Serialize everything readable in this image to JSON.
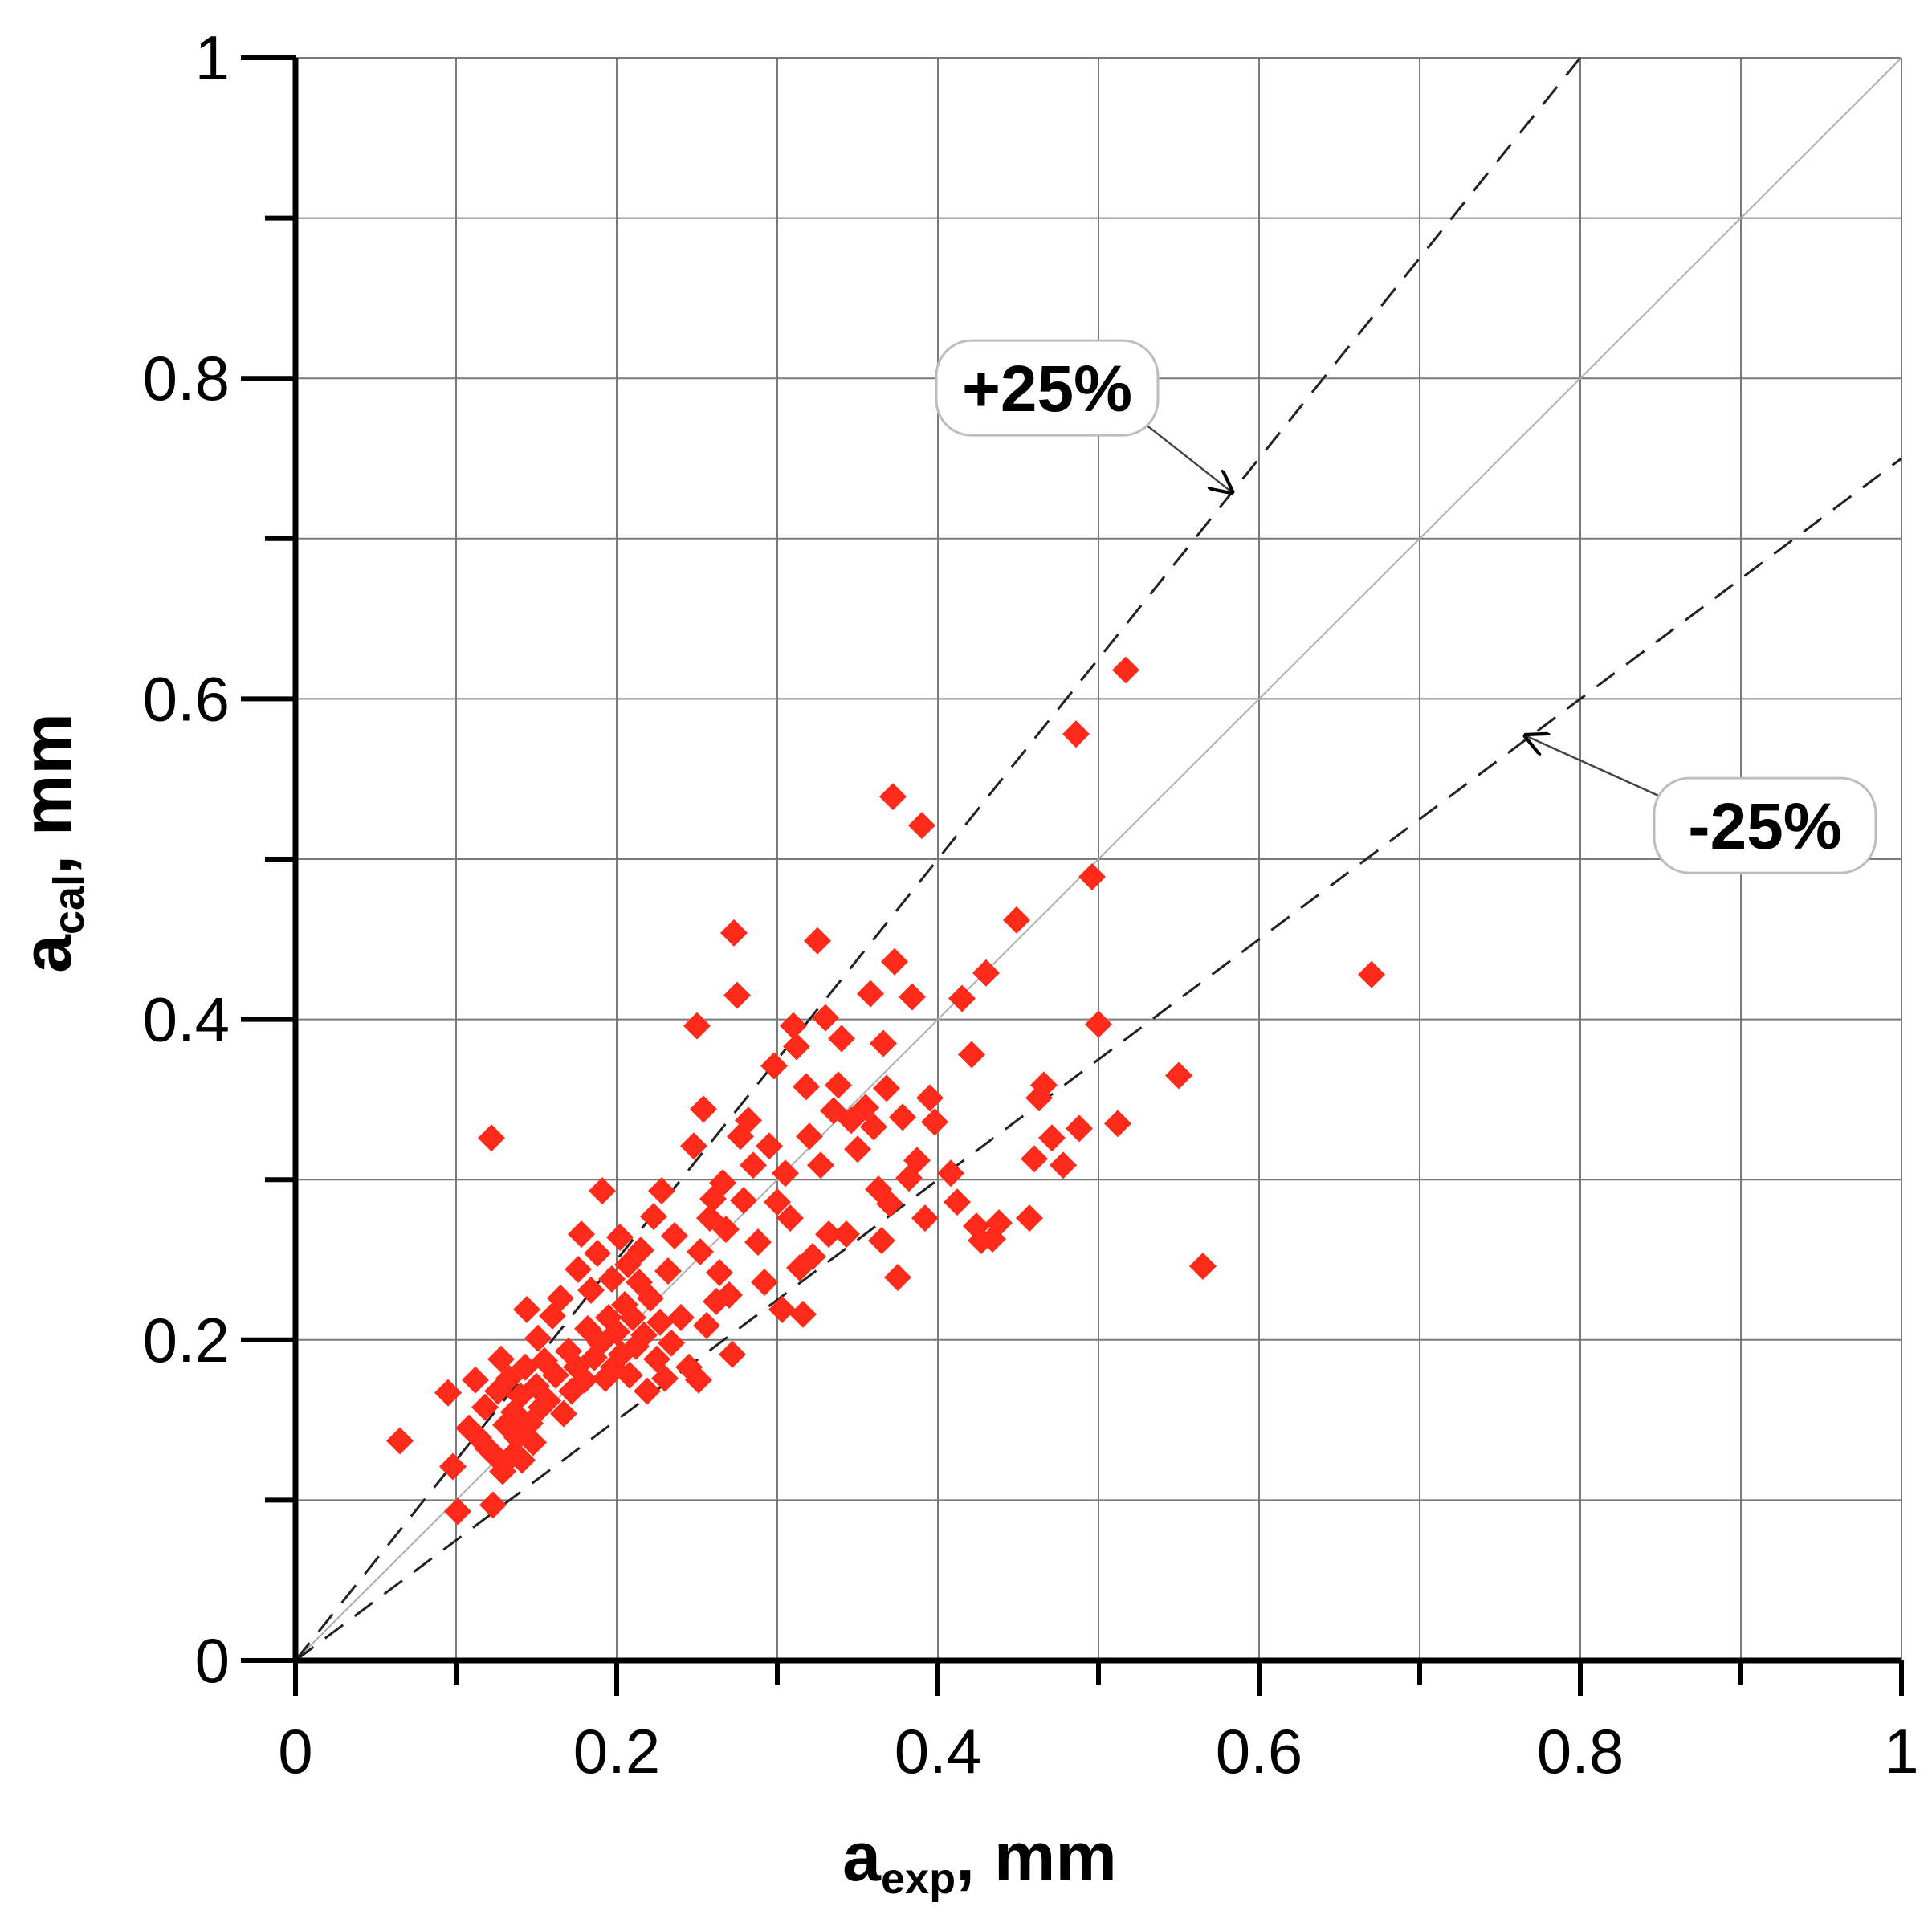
{
  "chart_data": {
    "type": "scatter",
    "title": "",
    "xlabel": {
      "main": "a",
      "sub": "exp",
      "rest": ", mm"
    },
    "ylabel": {
      "main": "a",
      "sub": "cal",
      "rest": ", mm"
    },
    "xlim": [
      0,
      1
    ],
    "ylim": [
      0,
      1
    ],
    "grid": true,
    "major_ticks": [
      0,
      0.2,
      0.4,
      0.6,
      0.8,
      1
    ],
    "major_tick_labels": [
      "0",
      "0.2",
      "0.4",
      "0.6",
      "0.8",
      "1"
    ],
    "minor_ticks": [
      0.1,
      0.3,
      0.5,
      0.7,
      0.9
    ],
    "marker": {
      "shape": "diamond",
      "color": "#ff2a1a"
    },
    "reference_lines": [
      {
        "name": "1:1",
        "slope": 1.0,
        "style": "solid",
        "color": "#b0b0b0"
      },
      {
        "name": "+25%",
        "slope": 1.25,
        "style": "dashed",
        "color": "#222222"
      },
      {
        "name": "-25%",
        "slope": 0.75,
        "style": "dashed",
        "color": "#222222"
      }
    ],
    "annotations": [
      {
        "text": "+25%",
        "label_at": [
          0.468,
          0.794
        ],
        "arrow_to": [
          0.583,
          0.729
        ]
      },
      {
        "text": "-25%",
        "label_at": [
          0.915,
          0.521
        ],
        "arrow_to": [
          0.766,
          0.577
        ]
      }
    ],
    "points": [
      [
        0.065,
        0.137
      ],
      [
        0.095,
        0.167
      ],
      [
        0.098,
        0.121
      ],
      [
        0.101,
        0.093
      ],
      [
        0.108,
        0.145
      ],
      [
        0.112,
        0.175
      ],
      [
        0.114,
        0.139
      ],
      [
        0.118,
        0.158
      ],
      [
        0.12,
        0.132
      ],
      [
        0.122,
        0.326
      ],
      [
        0.123,
        0.097
      ],
      [
        0.124,
        0.128
      ],
      [
        0.126,
        0.168
      ],
      [
        0.128,
        0.188
      ],
      [
        0.129,
        0.118
      ],
      [
        0.131,
        0.147
      ],
      [
        0.133,
        0.176
      ],
      [
        0.134,
        0.127
      ],
      [
        0.136,
        0.155
      ],
      [
        0.138,
        0.139
      ],
      [
        0.14,
        0.165
      ],
      [
        0.141,
        0.125
      ],
      [
        0.143,
        0.183
      ],
      [
        0.144,
        0.219
      ],
      [
        0.146,
        0.148
      ],
      [
        0.148,
        0.136
      ],
      [
        0.15,
        0.171
      ],
      [
        0.151,
        0.201
      ],
      [
        0.153,
        0.158
      ],
      [
        0.155,
        0.187
      ],
      [
        0.157,
        0.162
      ],
      [
        0.16,
        0.215
      ],
      [
        0.162,
        0.178
      ],
      [
        0.165,
        0.226
      ],
      [
        0.167,
        0.154
      ],
      [
        0.17,
        0.193
      ],
      [
        0.172,
        0.168
      ],
      [
        0.175,
        0.183
      ],
      [
        0.176,
        0.244
      ],
      [
        0.178,
        0.266
      ],
      [
        0.18,
        0.175
      ],
      [
        0.182,
        0.207
      ],
      [
        0.184,
        0.231
      ],
      [
        0.186,
        0.189
      ],
      [
        0.188,
        0.254
      ],
      [
        0.19,
        0.198
      ],
      [
        0.191,
        0.293
      ],
      [
        0.193,
        0.176
      ],
      [
        0.195,
        0.214
      ],
      [
        0.197,
        0.238
      ],
      [
        0.198,
        0.183
      ],
      [
        0.2,
        0.205
      ],
      [
        0.202,
        0.264
      ],
      [
        0.203,
        0.191
      ],
      [
        0.205,
        0.222
      ],
      [
        0.207,
        0.247
      ],
      [
        0.208,
        0.178
      ],
      [
        0.21,
        0.214
      ],
      [
        0.212,
        0.196
      ],
      [
        0.214,
        0.236
      ],
      [
        0.215,
        0.256
      ],
      [
        0.217,
        0.203
      ],
      [
        0.219,
        0.168
      ],
      [
        0.221,
        0.226
      ],
      [
        0.223,
        0.277
      ],
      [
        0.225,
        0.188
      ],
      [
        0.227,
        0.211
      ],
      [
        0.228,
        0.293
      ],
      [
        0.23,
        0.176
      ],
      [
        0.232,
        0.243
      ],
      [
        0.234,
        0.198
      ],
      [
        0.236,
        0.265
      ],
      [
        0.24,
        0.214
      ],
      [
        0.245,
        0.183
      ],
      [
        0.248,
        0.321
      ],
      [
        0.25,
        0.396
      ],
      [
        0.251,
        0.175
      ],
      [
        0.252,
        0.255
      ],
      [
        0.254,
        0.344
      ],
      [
        0.256,
        0.209
      ],
      [
        0.258,
        0.276
      ],
      [
        0.26,
        0.288
      ],
      [
        0.262,
        0.224
      ],
      [
        0.264,
        0.242
      ],
      [
        0.266,
        0.298
      ],
      [
        0.268,
        0.269
      ],
      [
        0.27,
        0.228
      ],
      [
        0.272,
        0.191
      ],
      [
        0.273,
        0.454
      ],
      [
        0.275,
        0.415
      ],
      [
        0.277,
        0.327
      ],
      [
        0.279,
        0.287
      ],
      [
        0.282,
        0.337
      ],
      [
        0.285,
        0.309
      ],
      [
        0.288,
        0.261
      ],
      [
        0.292,
        0.236
      ],
      [
        0.295,
        0.321
      ],
      [
        0.298,
        0.371
      ],
      [
        0.3,
        0.286
      ],
      [
        0.303,
        0.219
      ],
      [
        0.305,
        0.304
      ],
      [
        0.308,
        0.276
      ],
      [
        0.31,
        0.396
      ],
      [
        0.312,
        0.383
      ],
      [
        0.314,
        0.245
      ],
      [
        0.316,
        0.216
      ],
      [
        0.318,
        0.358
      ],
      [
        0.32,
        0.327
      ],
      [
        0.322,
        0.252
      ],
      [
        0.325,
        0.449
      ],
      [
        0.327,
        0.309
      ],
      [
        0.33,
        0.401
      ],
      [
        0.332,
        0.266
      ],
      [
        0.335,
        0.343
      ],
      [
        0.338,
        0.359
      ],
      [
        0.34,
        0.388
      ],
      [
        0.343,
        0.266
      ],
      [
        0.346,
        0.337
      ],
      [
        0.35,
        0.319
      ],
      [
        0.355,
        0.345
      ],
      [
        0.358,
        0.416
      ],
      [
        0.36,
        0.333
      ],
      [
        0.363,
        0.294
      ],
      [
        0.365,
        0.262
      ],
      [
        0.366,
        0.385
      ],
      [
        0.368,
        0.357
      ],
      [
        0.37,
        0.285
      ],
      [
        0.372,
        0.539
      ],
      [
        0.373,
        0.436
      ],
      [
        0.375,
        0.239
      ],
      [
        0.378,
        0.339
      ],
      [
        0.382,
        0.301
      ],
      [
        0.384,
        0.414
      ],
      [
        0.387,
        0.312
      ],
      [
        0.39,
        0.521
      ],
      [
        0.392,
        0.276
      ],
      [
        0.395,
        0.351
      ],
      [
        0.398,
        0.336
      ],
      [
        0.408,
        0.304
      ],
      [
        0.412,
        0.286
      ],
      [
        0.415,
        0.413
      ],
      [
        0.421,
        0.378
      ],
      [
        0.424,
        0.271
      ],
      [
        0.427,
        0.262
      ],
      [
        0.43,
        0.429
      ],
      [
        0.434,
        0.263
      ],
      [
        0.438,
        0.273
      ],
      [
        0.449,
        0.462
      ],
      [
        0.457,
        0.276
      ],
      [
        0.46,
        0.313
      ],
      [
        0.463,
        0.351
      ],
      [
        0.466,
        0.359
      ],
      [
        0.471,
        0.326
      ],
      [
        0.478,
        0.309
      ],
      [
        0.486,
        0.578
      ],
      [
        0.488,
        0.332
      ],
      [
        0.496,
        0.489
      ],
      [
        0.5,
        0.397
      ],
      [
        0.512,
        0.335
      ],
      [
        0.517,
        0.618
      ],
      [
        0.55,
        0.365
      ],
      [
        0.565,
        0.246
      ],
      [
        0.67,
        0.428
      ]
    ]
  }
}
